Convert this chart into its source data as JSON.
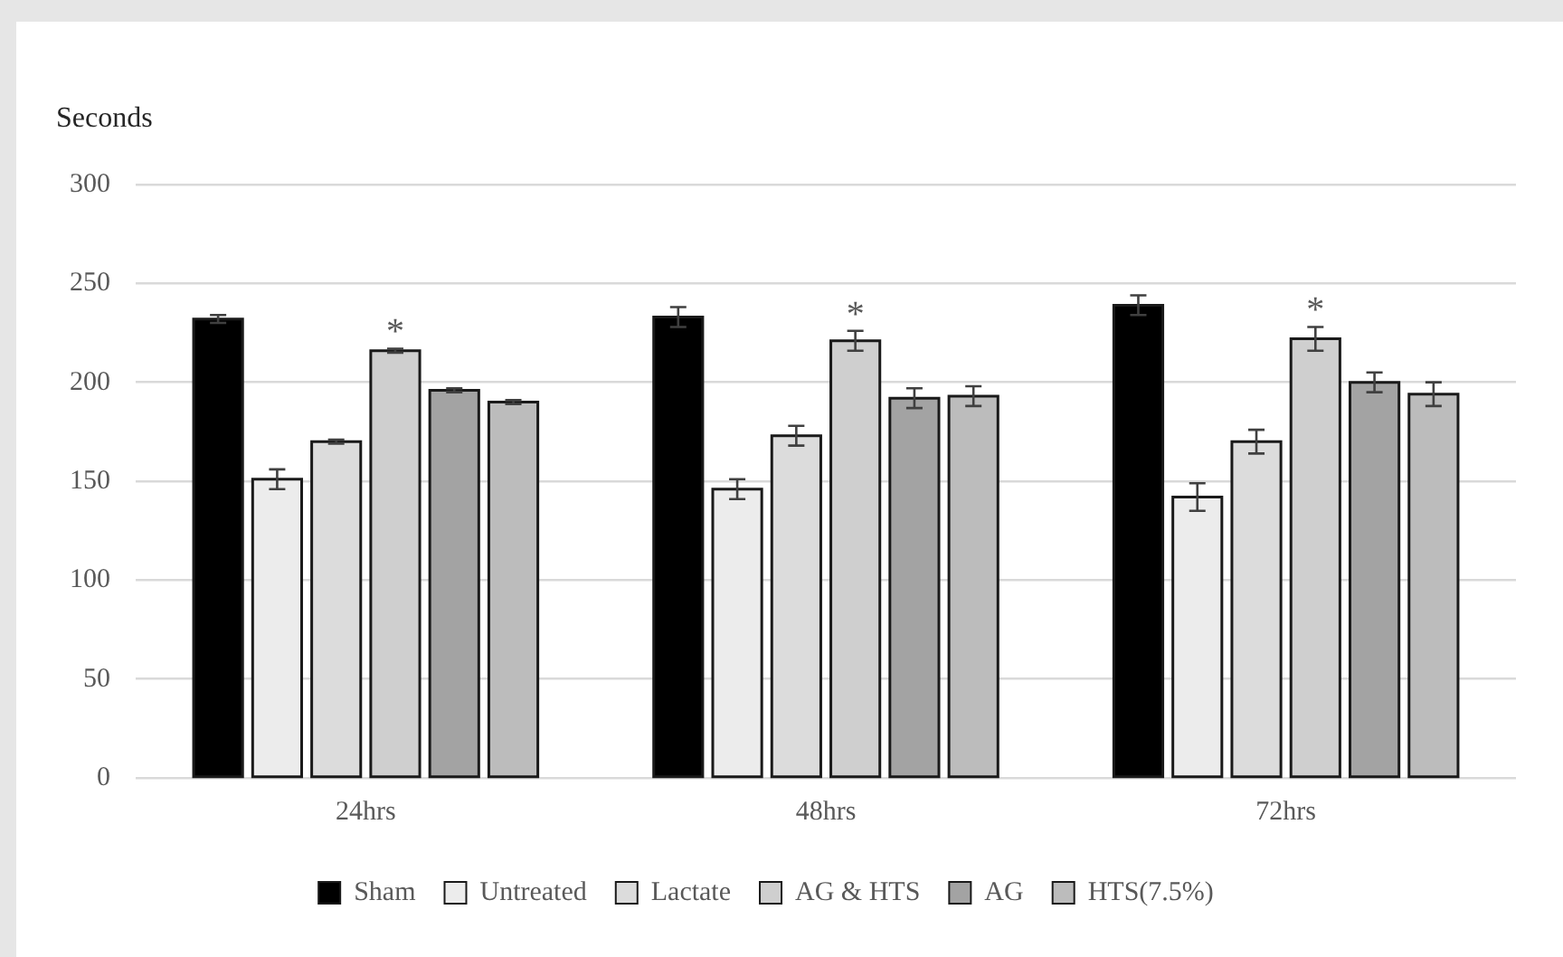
{
  "chart_data": {
    "type": "bar",
    "ylabel": "Seconds",
    "categories": [
      "24hrs",
      "48hrs",
      "72hrs"
    ],
    "series": [
      {
        "name": "Sham",
        "color": "#000000",
        "values": [
          232,
          233,
          239
        ],
        "errors": [
          2,
          5,
          5
        ]
      },
      {
        "name": "Untreated",
        "color": "#ececec",
        "values": [
          151,
          146,
          142
        ],
        "errors": [
          5,
          5,
          7
        ]
      },
      {
        "name": "Lactate",
        "color": "#dcdcdc",
        "values": [
          170,
          173,
          170
        ],
        "errors": [
          1,
          5,
          6
        ]
      },
      {
        "name": "AG & HTS",
        "color": "#cfcfcf",
        "values": [
          216,
          221,
          222
        ],
        "errors": [
          1,
          5,
          6
        ]
      },
      {
        "name": "AG",
        "color": "#a3a3a3",
        "values": [
          196,
          192,
          200
        ],
        "errors": [
          1,
          5,
          5
        ]
      },
      {
        "name": "HTS(7.5%)",
        "color": "#bcbcbc",
        "values": [
          190,
          193,
          194
        ],
        "errors": [
          1,
          5,
          6
        ]
      }
    ],
    "ylim": [
      0,
      300
    ],
    "yticks": [
      0,
      50,
      100,
      150,
      200,
      250,
      300
    ],
    "grid": "y",
    "legend": "bottom",
    "annotations": [
      {
        "text": "*",
        "x": "24hrs",
        "y": 216
      },
      {
        "text": "*",
        "x": "48hrs",
        "y": 221
      },
      {
        "text": "*",
        "x": "72hrs",
        "y": 222
      }
    ]
  }
}
